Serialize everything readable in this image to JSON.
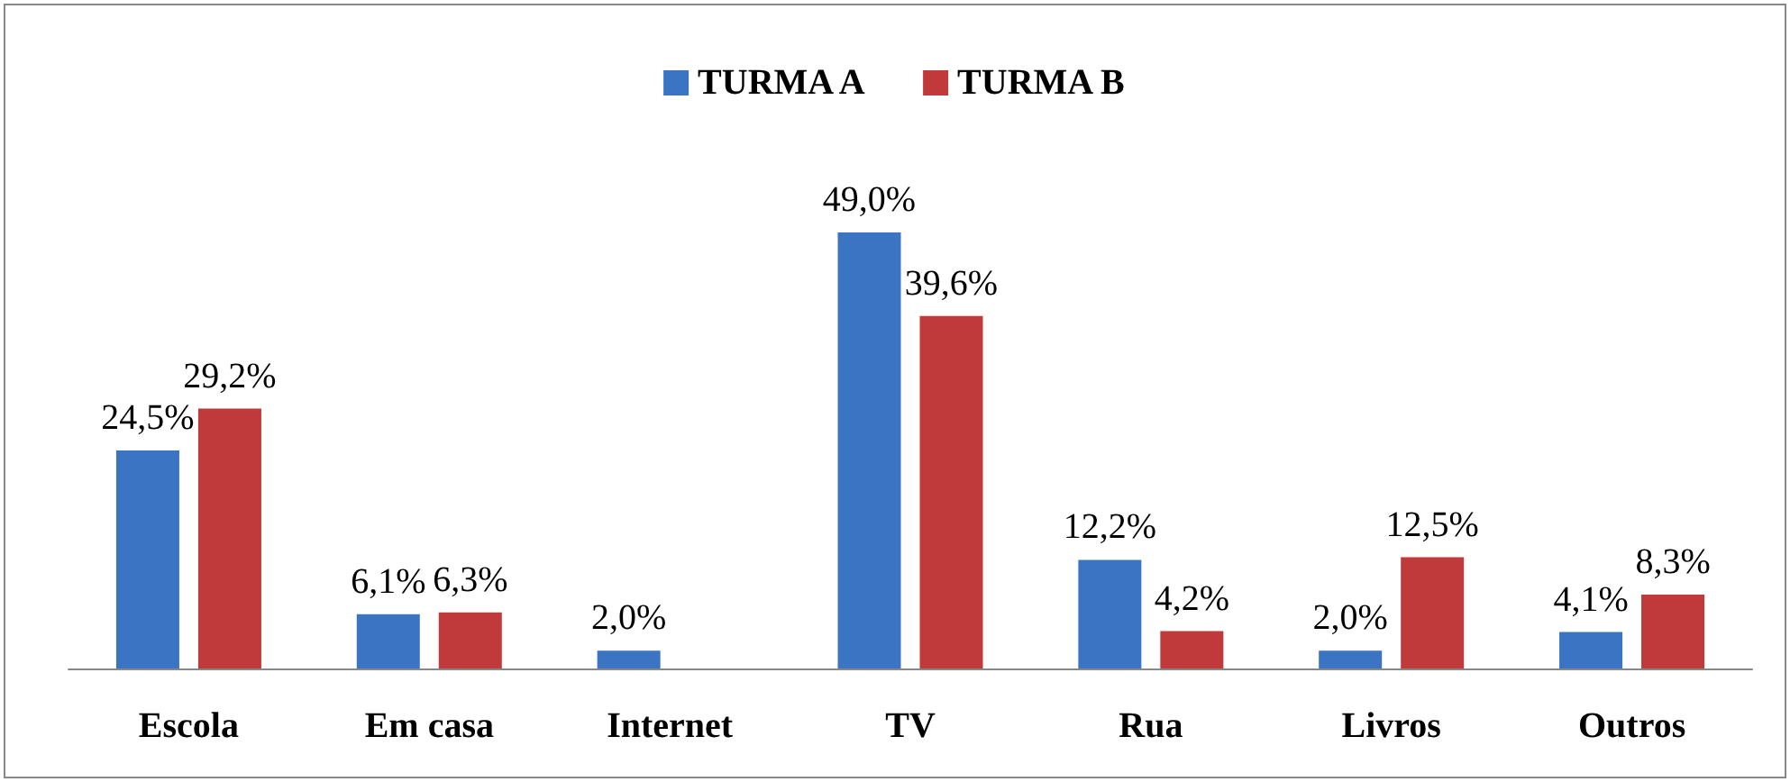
{
  "chart_data": {
    "type": "bar",
    "categories": [
      "Escola",
      "Em casa",
      "Internet",
      "TV",
      "Rua",
      "Livros",
      "Outros"
    ],
    "series": [
      {
        "name": "TURMA A",
        "color": "#3a74c2",
        "values": [
          24.5,
          6.1,
          2.0,
          49.0,
          12.2,
          2.0,
          4.1
        ],
        "value_labels": [
          "24,5%",
          "6,1%",
          "2,0%",
          "49,0%",
          "12,2%",
          "2,0%",
          "4,1%"
        ]
      },
      {
        "name": "TURMA B",
        "color": "#c0393b",
        "values": [
          29.2,
          6.3,
          null,
          39.6,
          4.2,
          12.5,
          8.3
        ],
        "value_labels": [
          "29,2%",
          "6,3%",
          null,
          "39,6%",
          "4,2%",
          "12,5%",
          "8,3%"
        ]
      }
    ],
    "legend": "top"
  }
}
